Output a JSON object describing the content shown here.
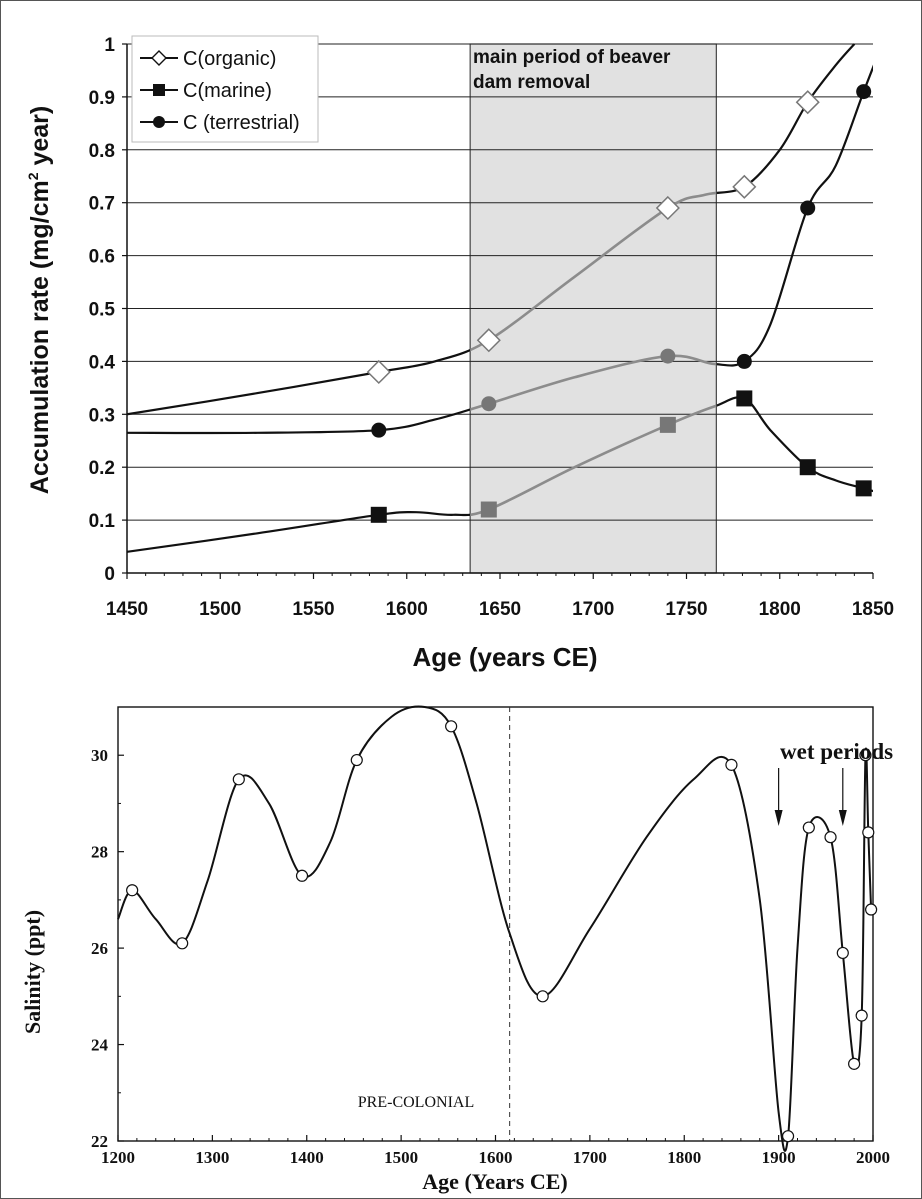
{
  "chart_data": [
    {
      "type": "line",
      "title": "",
      "xlabel": "Age (years CE)",
      "ylabel": "Accumulation rate (mg/cm",
      "ylabel_sup": "2",
      "ylabel_tail": " year)",
      "xlim": [
        1450,
        1850
      ],
      "ylim": [
        0,
        1
      ],
      "x_ticks": [
        "1450",
        "1500",
        "1550",
        "1600",
        "1650",
        "1700",
        "1750",
        "1800",
        "1850"
      ],
      "y_ticks": [
        "0",
        "0.1",
        "0.2",
        "0.3",
        "0.4",
        "0.5",
        "0.6",
        "0.7",
        "0.8",
        "0.9",
        "1"
      ],
      "grid": "horizontal",
      "legend_position": "top-left",
      "shaded_region": {
        "x_start": 1634,
        "x_end": 1766,
        "label_line1": "main period of beaver",
        "label_line2": "dam removal",
        "color": "#e1e1e1"
      },
      "series": [
        {
          "name": "C(organic)",
          "marker": "diamond-open",
          "points": [
            [
              1585,
              0.38
            ],
            [
              1644,
              0.44
            ],
            [
              1740,
              0.69
            ],
            [
              1781,
              0.73
            ],
            [
              1815,
              0.89
            ]
          ],
          "curve": [
            [
              1450,
              0.3
            ],
            [
              1520,
              0.34
            ],
            [
              1585,
              0.38
            ],
            [
              1615,
              0.4
            ],
            [
              1644,
              0.44
            ],
            [
              1690,
              0.56
            ],
            [
              1740,
              0.69
            ],
            [
              1760,
              0.715
            ],
            [
              1781,
              0.73
            ],
            [
              1800,
              0.8
            ],
            [
              1815,
              0.89
            ],
            [
              1830,
              0.96
            ],
            [
              1840,
              1.0
            ]
          ]
        },
        {
          "name": "C(marine)",
          "marker": "square-filled",
          "points": [
            [
              1585,
              0.11
            ],
            [
              1644,
              0.12
            ],
            [
              1740,
              0.28
            ],
            [
              1781,
              0.33
            ],
            [
              1815,
              0.2
            ],
            [
              1845,
              0.16
            ]
          ],
          "curve": [
            [
              1450,
              0.04
            ],
            [
              1520,
              0.075
            ],
            [
              1585,
              0.11
            ],
            [
              1605,
              0.115
            ],
            [
              1625,
              0.11
            ],
            [
              1644,
              0.12
            ],
            [
              1690,
              0.2
            ],
            [
              1740,
              0.28
            ],
            [
              1765,
              0.315
            ],
            [
              1781,
              0.33
            ],
            [
              1795,
              0.27
            ],
            [
              1815,
              0.2
            ],
            [
              1830,
              0.175
            ],
            [
              1845,
              0.16
            ],
            [
              1855,
              0.15
            ]
          ]
        },
        {
          "name": "C (terrestrial)",
          "marker": "circle-filled",
          "points": [
            [
              1585,
              0.27
            ],
            [
              1644,
              0.32
            ],
            [
              1740,
              0.41
            ],
            [
              1781,
              0.4
            ],
            [
              1815,
              0.69
            ],
            [
              1845,
              0.91
            ]
          ],
          "curve": [
            [
              1450,
              0.265
            ],
            [
              1520,
              0.265
            ],
            [
              1585,
              0.27
            ],
            [
              1615,
              0.29
            ],
            [
              1644,
              0.32
            ],
            [
              1690,
              0.37
            ],
            [
              1740,
              0.41
            ],
            [
              1765,
              0.395
            ],
            [
              1781,
              0.4
            ],
            [
              1795,
              0.47
            ],
            [
              1815,
              0.69
            ],
            [
              1830,
              0.77
            ],
            [
              1845,
              0.91
            ],
            [
              1855,
              1.0
            ]
          ]
        }
      ],
      "colors": {
        "inside_shaded": "#8c8c8c",
        "outside": "#111111"
      }
    },
    {
      "type": "line",
      "title": "",
      "xlabel": "Age (Years CE)",
      "ylabel": "Salinity (ppt)",
      "xlim": [
        1200,
        2000
      ],
      "ylim": [
        22,
        31
      ],
      "x_ticks": [
        "1200",
        "1300",
        "1400",
        "1500",
        "1600",
        "1700",
        "1800",
        "1900",
        "2000"
      ],
      "y_ticks": [
        "22",
        "24",
        "26",
        "28",
        "30"
      ],
      "grid": "none",
      "dashed_line_x": 1615,
      "annotations": {
        "pre_colonial": "PRE-COLONIAL",
        "wet_periods": "wet periods",
        "arrows_x": [
          1900,
          1968
        ]
      },
      "series": [
        {
          "name": "",
          "marker": "circle-open",
          "points": [
            [
              1215,
              27.2
            ],
            [
              1268,
              26.1
            ],
            [
              1328,
              29.5
            ],
            [
              1395,
              27.5
            ],
            [
              1453,
              29.9
            ],
            [
              1553,
              30.6
            ],
            [
              1650,
              25.0
            ],
            [
              1850,
              29.8
            ],
            [
              1910,
              22.1
            ],
            [
              1932,
              28.5
            ],
            [
              1955,
              28.3
            ],
            [
              1968,
              25.9
            ],
            [
              1980,
              23.6
            ],
            [
              1988,
              24.6
            ],
            [
              1992,
              30.0
            ],
            [
              1995,
              28.4
            ],
            [
              1998,
              26.8
            ]
          ],
          "curve": [
            [
              1200,
              26.6
            ],
            [
              1215,
              27.2
            ],
            [
              1240,
              26.6
            ],
            [
              1268,
              26.1
            ],
            [
              1295,
              27.4
            ],
            [
              1328,
              29.5
            ],
            [
              1360,
              29.0
            ],
            [
              1395,
              27.5
            ],
            [
              1425,
              28.2
            ],
            [
              1453,
              29.9
            ],
            [
              1490,
              30.8
            ],
            [
              1525,
              31.0
            ],
            [
              1553,
              30.6
            ],
            [
              1580,
              29.0
            ],
            [
              1615,
              26.3
            ],
            [
              1650,
              25.0
            ],
            [
              1700,
              26.4
            ],
            [
              1760,
              28.3
            ],
            [
              1810,
              29.5
            ],
            [
              1850,
              29.8
            ],
            [
              1880,
              27.0
            ],
            [
              1900,
              22.6
            ],
            [
              1910,
              22.1
            ],
            [
              1920,
              26.0
            ],
            [
              1932,
              28.5
            ],
            [
              1955,
              28.3
            ],
            [
              1968,
              25.9
            ],
            [
              1980,
              23.6
            ],
            [
              1988,
              24.6
            ],
            [
              1992,
              30.0
            ],
            [
              1995,
              28.4
            ],
            [
              1998,
              26.8
            ]
          ]
        }
      ]
    }
  ]
}
